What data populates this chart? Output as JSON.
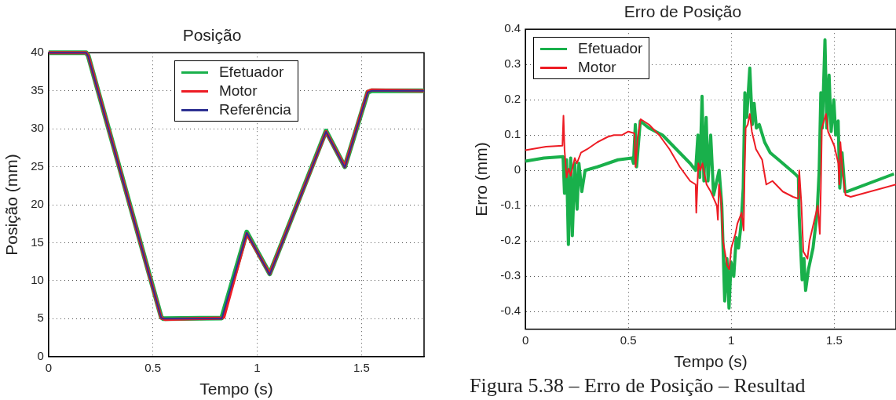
{
  "chart_data": [
    {
      "type": "line",
      "title": "Posição",
      "xlabel": "Tempo (s)",
      "ylabel": "Posição (mm)",
      "xlim": [
        0,
        1.8
      ],
      "ylim": [
        0,
        40
      ],
      "xticks": [
        0,
        0.5,
        1,
        1.5
      ],
      "yticks": [
        0,
        5,
        10,
        15,
        20,
        25,
        30,
        35,
        40
      ],
      "grid": true,
      "legend": "top",
      "marker": "none",
      "series": [
        {
          "name": "Efetuador",
          "color": "#19b04b",
          "x": [
            0,
            0.18,
            0.19,
            0.54,
            0.55,
            0.83,
            0.95,
            1.06,
            1.33,
            1.42,
            1.53,
            1.55,
            1.8
          ],
          "values": [
            40,
            40,
            39.6,
            5.2,
            5,
            5.1,
            16.4,
            10.9,
            29.7,
            25,
            34.8,
            35,
            35
          ]
        },
        {
          "name": "Motor",
          "color": "#ed1c24",
          "x": [
            0,
            0.18,
            0.19,
            0.54,
            0.56,
            0.83,
            0.84,
            0.95,
            1.06,
            1.33,
            1.42,
            1.53,
            1.55,
            1.8
          ],
          "values": [
            40,
            40,
            39.6,
            5.1,
            4.9,
            5.1,
            5.2,
            16.2,
            10.9,
            29.6,
            25,
            34.9,
            35.1,
            35
          ]
        },
        {
          "name": "Referência",
          "color": "#2e3192",
          "x": [
            0,
            0.18,
            0.19,
            0.54,
            0.55,
            0.83,
            0.95,
            1.06,
            1.33,
            1.42,
            1.53,
            1.55,
            1.8
          ],
          "values": [
            40,
            40,
            39.5,
            5.1,
            5,
            5,
            16.3,
            10.8,
            29.6,
            24.9,
            34.8,
            35,
            35
          ]
        }
      ]
    },
    {
      "type": "line",
      "title": "Erro de Posição",
      "xlabel": "Tempo (s)",
      "ylabel": "Erro (mm)",
      "xlim": [
        0,
        1.8
      ],
      "ylim": [
        -0.45,
        0.4
      ],
      "xticks": [
        0,
        0.5,
        1,
        1.5
      ],
      "yticks": [
        -0.4,
        -0.3,
        -0.2,
        -0.1,
        0,
        0.1,
        0.2,
        0.3,
        0.4
      ],
      "grid": true,
      "legend": "top left",
      "marker": "none",
      "annotations": [
        "Figura 5.38 – Erro de Posição – Resultad"
      ],
      "series": [
        {
          "name": "Efetuador",
          "color": "#19b04b",
          "x": [
            0,
            0.09,
            0.183,
            0.19,
            0.2,
            0.209,
            0.22,
            0.228,
            0.24,
            0.251,
            0.26,
            0.274,
            0.29,
            0.35,
            0.4,
            0.45,
            0.518,
            0.525,
            0.534,
            0.54,
            0.558,
            0.6,
            0.666,
            0.8,
            0.827,
            0.838,
            0.847,
            0.858,
            0.867,
            0.878,
            0.887,
            0.9,
            0.914,
            0.941,
            0.954,
            0.968,
            0.979,
            0.989,
            0.999,
            1.012,
            1.024,
            1.035,
            1.048,
            1.058,
            1.066,
            1.075,
            1.09,
            1.102,
            1.111,
            1.122,
            1.136,
            1.162,
            1.189,
            1.23,
            1.27,
            1.31,
            1.326,
            1.33,
            1.344,
            1.353,
            1.361,
            1.375,
            1.397,
            1.417,
            1.427,
            1.435,
            1.442,
            1.455,
            1.464,
            1.475,
            1.485,
            1.498,
            1.507,
            1.519,
            1.527,
            1.538,
            1.552,
            1.561,
            1.79
          ],
          "values": [
            0.026,
            0.035,
            0.039,
            -0.065,
            0.03,
            -0.21,
            0.035,
            -0.185,
            0.02,
            -0.11,
            0.02,
            -0.06,
            0,
            0.01,
            0.02,
            0.03,
            0.035,
            0.02,
            0.13,
            0.01,
            0.14,
            0.12,
            0.1,
            0.02,
            0,
            0.1,
            -0.02,
            0.21,
            -0.03,
            0.15,
            -0.03,
            0.1,
            -0.07,
            0,
            -0.1,
            -0.37,
            -0.25,
            -0.39,
            -0.26,
            -0.3,
            -0.19,
            -0.22,
            -0.15,
            -0.05,
            0.22,
            0.15,
            0.29,
            0.13,
            0.19,
            0.12,
            0.13,
            0.08,
            0.05,
            0.03,
            0.01,
            -0.01,
            -0.02,
            -0.13,
            -0.31,
            -0.25,
            -0.34,
            -0.28,
            -0.22,
            -0.12,
            0,
            0.22,
            0.12,
            0.37,
            0.12,
            0.27,
            0.11,
            0.2,
            0.1,
            0.14,
            -0.05,
            0.05,
            -0.06,
            -0.06,
            -0.01
          ]
        },
        {
          "name": "Motor",
          "color": "#ed1c24",
          "x": [
            0,
            0.1,
            0.18,
            0.185,
            0.19,
            0.2,
            0.21,
            0.22,
            0.24,
            0.25,
            0.27,
            0.3,
            0.35,
            0.4,
            0.43,
            0.47,
            0.5,
            0.53,
            0.535,
            0.545,
            0.56,
            0.6,
            0.65,
            0.7,
            0.75,
            0.8,
            0.827,
            0.83,
            0.84,
            0.85,
            0.86,
            0.88,
            0.9,
            0.93,
            0.935,
            0.94,
            0.95,
            0.96,
            0.98,
            0.99,
            1,
            1.02,
            1.03,
            1.05,
            1.06,
            1.065,
            1.07,
            1.08,
            1.09,
            1.1,
            1.12,
            1.15,
            1.17,
            1.2,
            1.25,
            1.3,
            1.325,
            1.33,
            1.34,
            1.35,
            1.36,
            1.37,
            1.38,
            1.4,
            1.42,
            1.43,
            1.435,
            1.44,
            1.455,
            1.46,
            1.47,
            1.5,
            1.52,
            1.525,
            1.53,
            1.54,
            1.555,
            1.58,
            1.8
          ],
          "values": [
            0.057,
            0.067,
            0.07,
            0.155,
            0.06,
            -0.02,
            0.005,
            -0.015,
            0.035,
            0.02,
            0.05,
            0.06,
            0.08,
            0.095,
            0.1,
            0.1,
            0.11,
            0.105,
            0.01,
            0.09,
            0.145,
            0.13,
            0.1,
            0.06,
            0.01,
            -0.03,
            -0.04,
            -0.12,
            0.02,
            0,
            0.02,
            -0.04,
            -0.06,
            -0.1,
            -0.14,
            -0.04,
            -0.08,
            -0.2,
            -0.27,
            -0.28,
            -0.22,
            -0.18,
            -0.15,
            -0.12,
            -0.17,
            0,
            0.12,
            0.13,
            0.16,
            0.11,
            0.06,
            0.03,
            -0.04,
            -0.03,
            -0.06,
            -0.075,
            -0.08,
            0,
            -0.09,
            -0.23,
            -0.24,
            -0.25,
            -0.2,
            -0.15,
            -0.1,
            -0.18,
            -0.05,
            0.12,
            0.15,
            0.16,
            0.11,
            0.07,
            0.02,
            -0.04,
            0.08,
            0,
            -0.07,
            -0.075,
            -0.04
          ]
        }
      ]
    }
  ]
}
